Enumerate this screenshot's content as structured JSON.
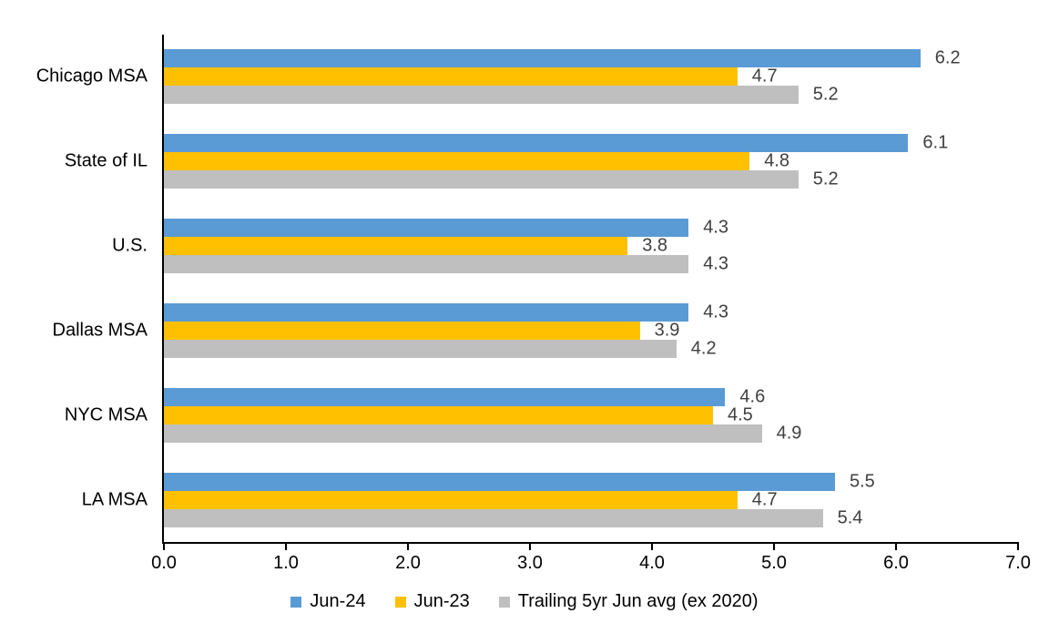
{
  "chart_data": {
    "type": "bar",
    "orientation": "horizontal",
    "title": "",
    "xlabel": "",
    "ylabel": "",
    "categories": [
      "Chicago MSA",
      "State of IL",
      "U.S.",
      "Dallas MSA",
      "NYC MSA",
      "LA MSA"
    ],
    "series": [
      {
        "name": "Jun-24",
        "color": "#5B9BD5",
        "values": [
          6.2,
          6.1,
          4.3,
          4.3,
          4.6,
          5.5
        ]
      },
      {
        "name": "Jun-23",
        "color": "#FFC000",
        "values": [
          4.7,
          4.8,
          3.8,
          3.9,
          4.5,
          4.7
        ]
      },
      {
        "name": "Trailing 5yr Jun avg (ex 2020)",
        "color": "#BFBFBF",
        "values": [
          5.2,
          5.2,
          4.3,
          4.2,
          4.9,
          5.4
        ]
      }
    ],
    "xlim": [
      0,
      7
    ],
    "xticks": [
      0,
      1,
      2,
      3,
      4,
      5,
      6,
      7
    ],
    "xticklabels": [
      "0.0",
      "1.0",
      "2.0",
      "3.0",
      "4.0",
      "5.0",
      "6.0",
      "7.0"
    ],
    "data_labels_shown": true,
    "grid": false,
    "legend_position": "bottom",
    "colors": {
      "axis": "#000000",
      "value_label": "#404040",
      "tick_label": "#000000",
      "category_label": "#000000",
      "background": "#FFFFFF"
    }
  }
}
